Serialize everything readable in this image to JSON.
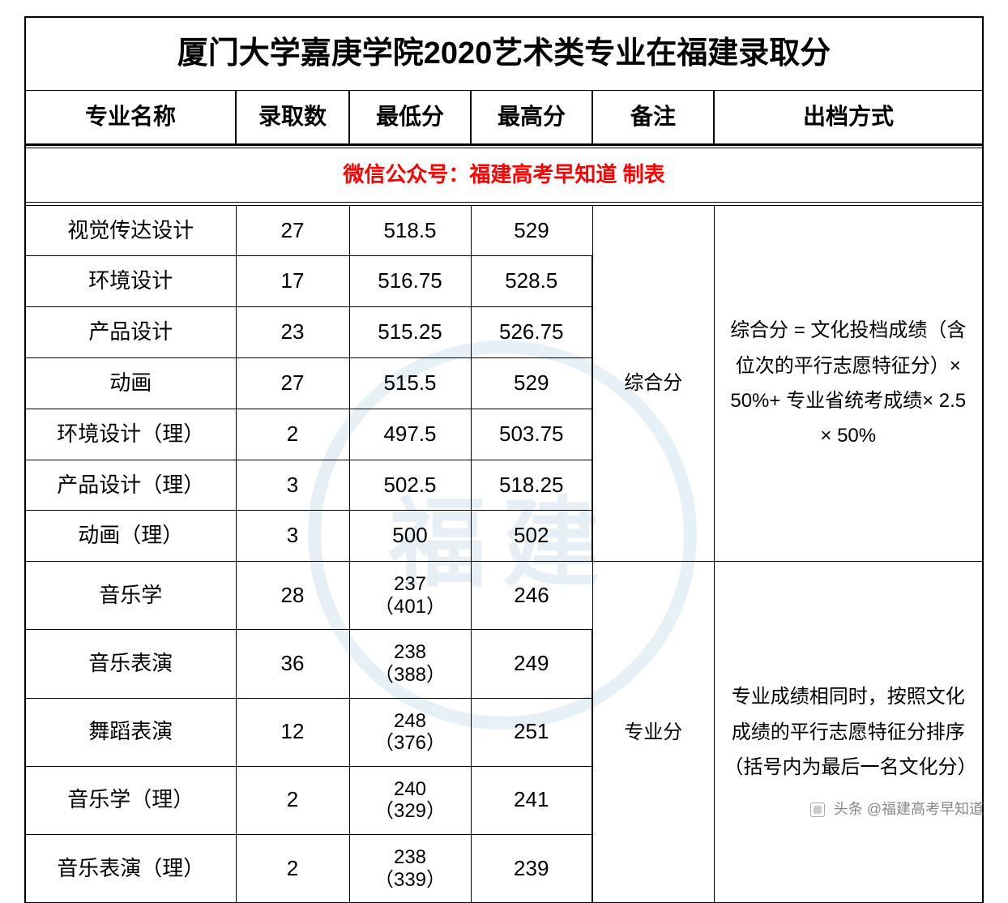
{
  "title": "厦门大学嘉庚学院2020艺术类专业在福建录取分",
  "headers": {
    "name": "专业名称",
    "count": "录取数",
    "min": "最低分",
    "max": "最高分",
    "note": "备注",
    "method": "出档方式"
  },
  "notice": "微信公众号：福建高考早知道  制表",
  "group1": {
    "note": "综合分",
    "method": "综合分 = 文化投档成绩（含位次的平行志愿特征分）× 50%+ 专业省统考成绩× 2.5 × 50%",
    "rows": [
      {
        "name": "视觉传达设计",
        "count": "27",
        "min": "518.5",
        "max": "529"
      },
      {
        "name": "环境设计",
        "count": "17",
        "min": "516.75",
        "max": "528.5"
      },
      {
        "name": "产品设计",
        "count": "23",
        "min": "515.25",
        "max": "526.75"
      },
      {
        "name": "动画",
        "count": "27",
        "min": "515.5",
        "max": "529"
      },
      {
        "name": "环境设计（理）",
        "count": "2",
        "min": "497.5",
        "max": "503.75"
      },
      {
        "name": "产品设计（理）",
        "count": "3",
        "min": "502.5",
        "max": "518.25"
      },
      {
        "name": "动画（理）",
        "count": "3",
        "min": "500",
        "max": "502"
      }
    ]
  },
  "group2": {
    "note": "专业分",
    "method": "专业成绩相同时，按照文化成绩的平行志愿特征分排序（括号内为最后一名文化分）",
    "rows": [
      {
        "name": "音乐学",
        "count": "28",
        "min": "237\n（401）",
        "max": "246"
      },
      {
        "name": "音乐表演",
        "count": "36",
        "min": "238\n（388）",
        "max": "249"
      },
      {
        "name": "舞蹈表演",
        "count": "12",
        "min": "248\n（376）",
        "max": "251"
      },
      {
        "name": "音乐学（理）",
        "count": "2",
        "min": "240\n（329）",
        "max": "241"
      },
      {
        "name": "音乐表演（理）",
        "count": "2",
        "min": "238\n（339）",
        "max": "239"
      }
    ]
  },
  "attribution": "头条 @福建高考早知道",
  "style": {
    "title_fontsize": 38,
    "header_fontsize": 28,
    "cell_fontsize": 26,
    "notice_color": "#ff0000",
    "border_color": "#000000",
    "background": "#ffffff",
    "watermark_color": "#b8d4e8",
    "col_widths": {
      "name": 260,
      "count": 140,
      "min": 150,
      "max": 150,
      "note": 150
    }
  }
}
